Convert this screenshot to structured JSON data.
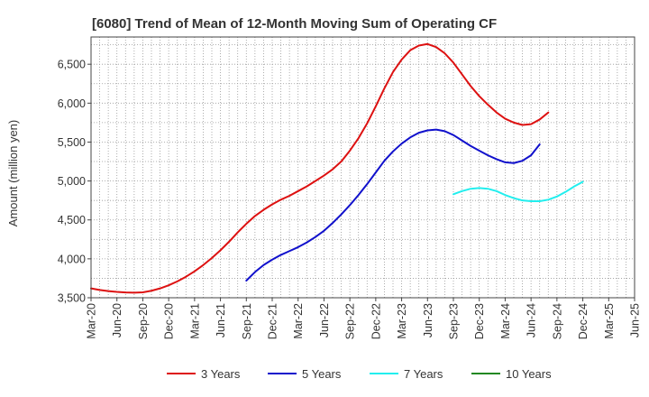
{
  "chart_data": {
    "type": "line",
    "title": "[6080]  Trend of Mean of 12-Month Moving Sum of Operating CF",
    "xlabel": "",
    "ylabel": "Amount (million yen)",
    "ylim": [
      3500,
      6850
    ],
    "yticks": [
      3500,
      4000,
      4500,
      5000,
      5500,
      6000,
      6500
    ],
    "ytick_labels": [
      "3,500",
      "4,000",
      "4,500",
      "5,000",
      "5,500",
      "6,000",
      "6,500"
    ],
    "xticks": [
      "Mar-20",
      "Jun-20",
      "Sep-20",
      "Dec-20",
      "Mar-21",
      "Jun-21",
      "Sep-21",
      "Dec-21",
      "Mar-22",
      "Jun-22",
      "Sep-22",
      "Dec-22",
      "Mar-23",
      "Jun-23",
      "Sep-23",
      "Dec-23",
      "Mar-24",
      "Jun-24",
      "Sep-24",
      "Dec-24",
      "Mar-25",
      "Jun-25"
    ],
    "grid": true,
    "legend_position": "bottom",
    "series": [
      {
        "name": "3 Years",
        "color": "#dd1111",
        "start_index": 0,
        "values": [
          3620,
          3600,
          3585,
          3575,
          3568,
          3565,
          3570,
          3590,
          3620,
          3660,
          3710,
          3770,
          3840,
          3920,
          4010,
          4110,
          4220,
          4340,
          4450,
          4550,
          4630,
          4700,
          4760,
          4810,
          4870,
          4930,
          5000,
          5070,
          5150,
          5250,
          5390,
          5550,
          5740,
          5960,
          6190,
          6400,
          6560,
          6680,
          6740,
          6760,
          6720,
          6640,
          6520,
          6370,
          6220,
          6090,
          5980,
          5880,
          5800,
          5750,
          5720,
          5730,
          5790,
          5880
        ]
      },
      {
        "name": "5 Years",
        "color": "#1111cc",
        "start_index": 18,
        "values": [
          3720,
          3830,
          3920,
          3990,
          4050,
          4100,
          4150,
          4210,
          4280,
          4360,
          4460,
          4570,
          4690,
          4820,
          4960,
          5110,
          5260,
          5380,
          5480,
          5560,
          5620,
          5650,
          5660,
          5640,
          5590,
          5520,
          5450,
          5390,
          5330,
          5280,
          5240,
          5230,
          5260,
          5330,
          5470
        ]
      },
      {
        "name": "7 Years",
        "color": "#22eeee",
        "start_index": 42,
        "values": [
          4830,
          4870,
          4900,
          4910,
          4900,
          4870,
          4820,
          4780,
          4750,
          4740,
          4740,
          4760,
          4800,
          4860,
          4930,
          4990
        ]
      },
      {
        "name": "10 Years",
        "color": "#228822",
        "start_index": 0,
        "values": []
      }
    ]
  }
}
